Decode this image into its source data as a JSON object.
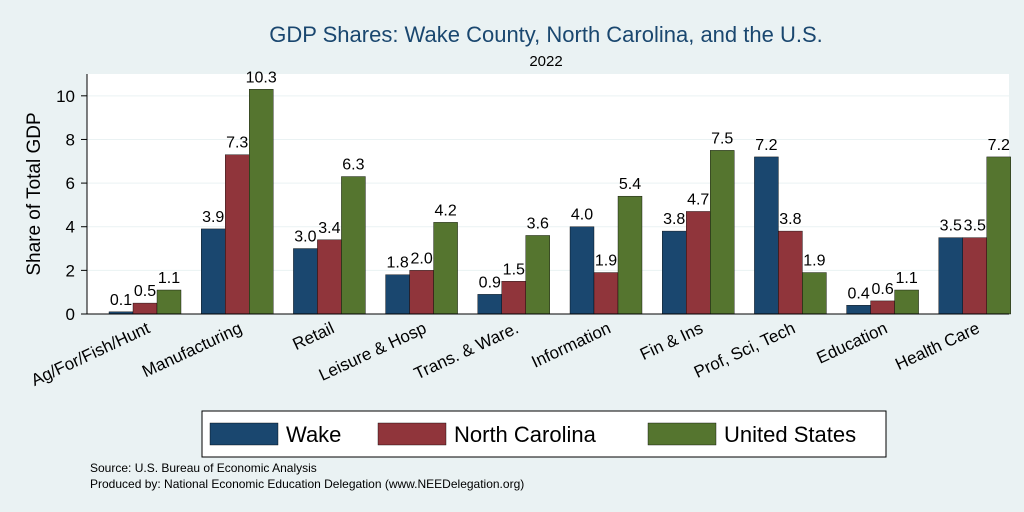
{
  "chart_data": {
    "type": "bar",
    "title": "GDP Shares: Wake County, North Carolina, and the U.S.",
    "subtitle": "2022",
    "xlabel": "",
    "ylabel": "Share of Total GDP",
    "ylim": [
      0,
      11
    ],
    "yticks": [
      0,
      2,
      4,
      6,
      8,
      10
    ],
    "grid": true,
    "legend_position": "bottom",
    "categories": [
      "Ag/For/Fish/Hunt",
      "Manufacturing",
      "Retail",
      "Leisure & Hosp",
      "Trans. & Ware.",
      "Information",
      "Fin & Ins",
      "Prof, Sci, Tech",
      "Education",
      "Health Care"
    ],
    "series": [
      {
        "name": "Wake",
        "color": "#1a476f",
        "values": [
          0.1,
          3.9,
          3.0,
          1.8,
          0.9,
          4.0,
          3.8,
          7.2,
          0.4,
          3.5
        ],
        "labels": [
          "0.1",
          "3.9",
          "3.0",
          "1.8",
          "0.9",
          "4.0",
          "3.8",
          "7.2",
          "0.4",
          "3.5"
        ]
      },
      {
        "name": "North Carolina",
        "color": "#90353b",
        "values": [
          0.5,
          7.3,
          3.4,
          2.0,
          1.5,
          1.9,
          4.7,
          3.8,
          0.6,
          3.5
        ],
        "labels": [
          "0.5",
          "7.3",
          "3.4",
          "2.0",
          "1.5",
          "1.9",
          "4.7",
          "3.8",
          "0.6",
          "3.5"
        ]
      },
      {
        "name": "United States",
        "color": "#55752f",
        "values": [
          1.1,
          10.3,
          6.3,
          4.2,
          3.6,
          5.4,
          7.5,
          1.9,
          1.1,
          7.2
        ],
        "labels": [
          "1.1",
          "10.3",
          "6.3",
          "4.2",
          "3.6",
          "5.4",
          "7.5",
          "1.9",
          "1.1",
          "7.2"
        ]
      }
    ]
  },
  "notes": {
    "source": "Source: U.S. Bureau of Economic Analysis",
    "produced": "Produced by: National Economic Education Delegation (www.NEEDelegation.org)"
  }
}
